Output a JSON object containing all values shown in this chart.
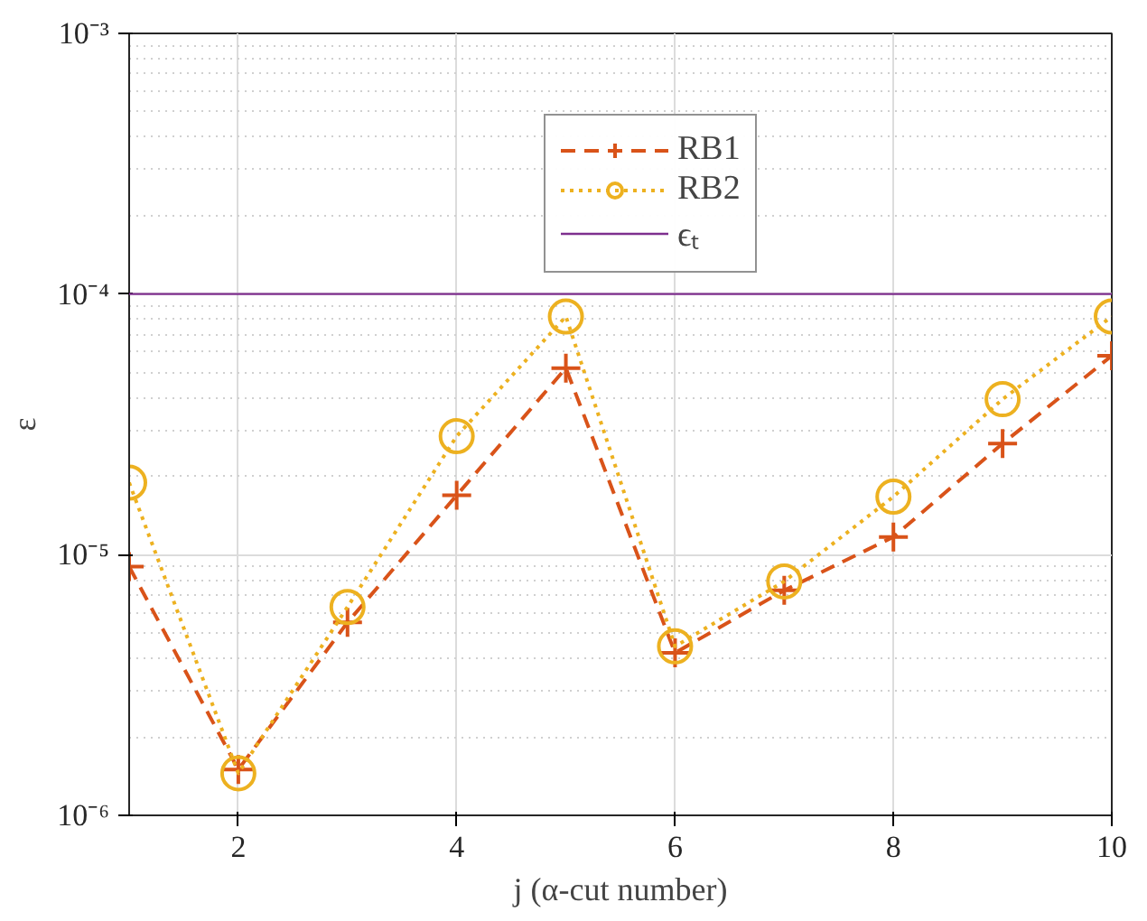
{
  "chart_data": {
    "type": "line",
    "xlabel": "j (α-cut number)",
    "ylabel": "ε",
    "x": [
      1,
      2,
      3,
      4,
      5,
      6,
      7,
      8,
      9,
      10
    ],
    "series": [
      {
        "name": "RB1",
        "color": "#d95319",
        "marker": "cross",
        "line_style": "dashed",
        "values": [
          9e-06,
          1.5e-06,
          5.5e-06,
          1.69e-05,
          5.2e-05,
          4.2e-06,
          7.3e-06,
          1.17e-05,
          2.67e-05,
          5.8e-05
        ]
      },
      {
        "name": "RB2",
        "color": "#edb120",
        "marker": "circle",
        "line_style": "dotted",
        "values": [
          1.89e-05,
          1.45e-06,
          6.3e-06,
          2.85e-05,
          8.2e-05,
          4.45e-06,
          7.9e-06,
          1.67e-05,
          3.95e-05,
          8.2e-05
        ]
      }
    ],
    "log": "y",
    "xlim": [
      1,
      10
    ],
    "xticks": [
      2,
      4,
      6,
      8,
      10
    ],
    "ylim": [
      1e-06,
      0.001
    ],
    "yticks": [
      {
        "value": 1e-06,
        "label": "10⁻⁶"
      },
      {
        "value": 1e-05,
        "label": "10⁻⁵"
      },
      {
        "value": 0.0001,
        "label": "10⁻⁴"
      },
      {
        "value": 0.001,
        "label": "10⁻³"
      }
    ],
    "ref_lines": [
      {
        "axis": "y",
        "value": 0.0001,
        "label": "ϵₜ",
        "color": "#7e2f8e",
        "line_style": "solid"
      }
    ],
    "grid": true,
    "legend": "top"
  }
}
